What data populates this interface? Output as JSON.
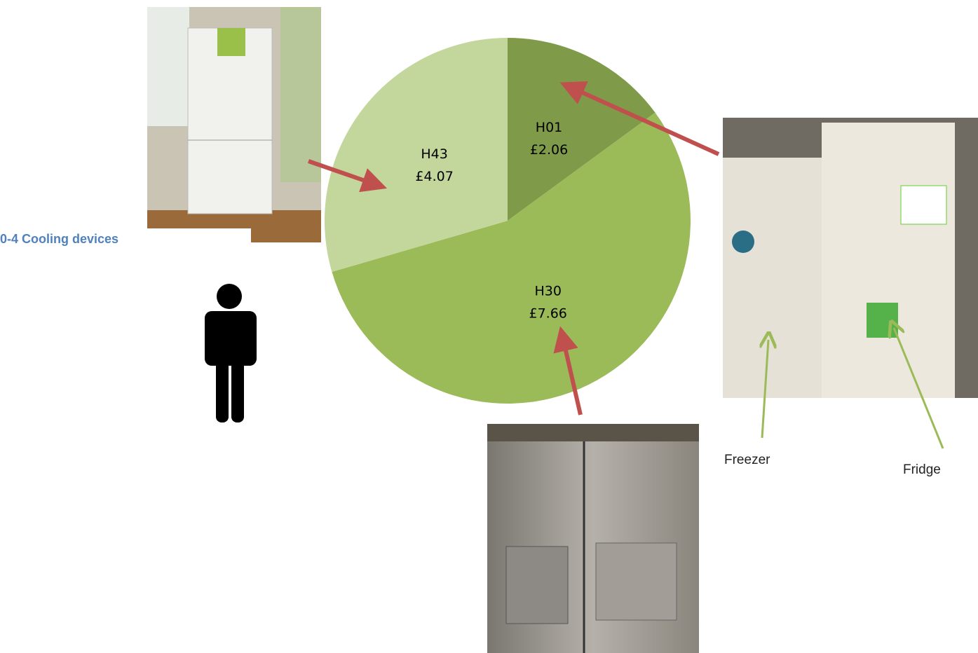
{
  "chart_data": {
    "type": "pie",
    "categories": [
      "H01",
      "H30",
      "H43"
    ],
    "values": [
      2.06,
      7.66,
      4.07
    ],
    "value_labels": [
      "£2.06",
      "£7.66",
      "£4.07"
    ],
    "colors": [
      "#7f9a48",
      "#9bbb59",
      "#c3d69b"
    ],
    "start_angle": 0,
    "annotations": [
      "0-4 Cooling devices",
      "Freezer",
      "Fridge"
    ]
  }
}
